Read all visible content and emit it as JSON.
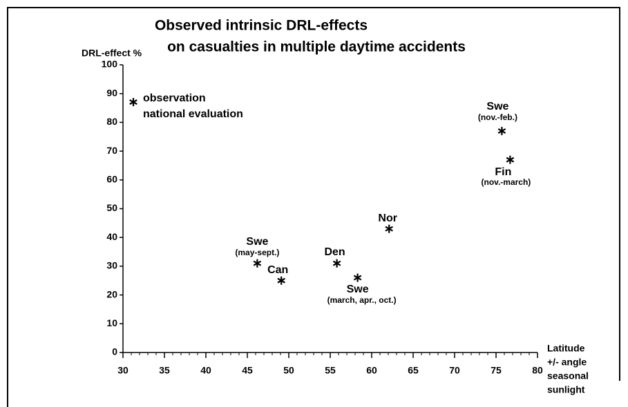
{
  "chart_data": {
    "type": "scatter",
    "title": [
      "Observed  intrinsic  DRL-effects",
      "on casualties in multiple daytime accidents"
    ],
    "ylabel": "DRL-effect %",
    "xlabel": [
      "Latitude",
      "+/- angle",
      "seasonal",
      "sunlight"
    ],
    "legend": [
      "observation",
      "national evaluation"
    ],
    "color": "#000000",
    "x": [
      46.2,
      49.1,
      55.8,
      58.3,
      62.1,
      75.7,
      76.7
    ],
    "values": [
      31,
      25,
      31,
      26,
      43,
      77,
      67
    ],
    "labels": [
      "Swe",
      "Can",
      "Den",
      "Swe",
      "Nor",
      "Swe",
      "Fin"
    ],
    "sublabels": [
      "(may-sept.)",
      null,
      null,
      "(march, apr., oct.)",
      null,
      "(nov.-feb.)",
      "(nov.-march)"
    ],
    "xlim": [
      30,
      80
    ],
    "xticks": [
      30,
      35,
      40,
      45,
      50,
      55,
      60,
      65,
      70,
      75,
      80
    ],
    "ylim": [
      0,
      100
    ],
    "yticks": [
      0,
      10,
      20,
      30,
      40,
      50,
      60,
      70,
      80,
      90,
      100
    ]
  }
}
